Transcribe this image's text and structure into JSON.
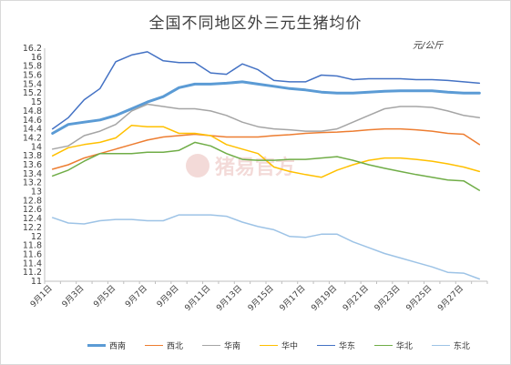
{
  "unit": "元/公斤",
  "watermark": "猪易官方",
  "chart_data": {
    "type": "line",
    "title": "全国不同地区外三元生猪均价",
    "xlabel": "",
    "ylabel": "",
    "ylim": [
      11,
      16.2
    ],
    "yticks": [
      11,
      11.2,
      11.4,
      11.6,
      11.8,
      12,
      12.2,
      12.4,
      12.6,
      12.8,
      13,
      13.2,
      13.4,
      13.6,
      13.8,
      14,
      14.2,
      14.4,
      14.6,
      14.8,
      15,
      15.2,
      15.4,
      15.6,
      15.8,
      16,
      16.2
    ],
    "x": [
      "9月1日",
      "9月2日",
      "9月3日",
      "9月4日",
      "9月5日",
      "9月6日",
      "9月7日",
      "9月8日",
      "9月9日",
      "9月10日",
      "9月11日",
      "9月12日",
      "9月13日",
      "9月14日",
      "9月15日",
      "9月16日",
      "9月17日",
      "9月18日",
      "9月19日",
      "9月20日",
      "9月21日",
      "9月22日",
      "9月23日",
      "9月24日",
      "9月25日",
      "9月26日",
      "9月27日",
      "9月28日"
    ],
    "xtick_labels": [
      "9月1日",
      "9月3日",
      "9月5日",
      "9月7日",
      "9月9日",
      "9月11日",
      "9月13日",
      "9月15日",
      "9月17日",
      "9月19日",
      "9月21日",
      "9月23日",
      "9月25日",
      "9月27日"
    ],
    "grid": false,
    "legend_position": "bottom",
    "series": [
      {
        "name": "西南",
        "color": "#5b9bd5",
        "width": 3,
        "values": [
          14.3,
          14.5,
          14.55,
          14.6,
          14.7,
          14.85,
          15.0,
          15.12,
          15.32,
          15.4,
          15.4,
          15.42,
          15.45,
          15.4,
          15.35,
          15.3,
          15.27,
          15.22,
          15.2,
          15.2,
          15.22,
          15.24,
          15.25,
          15.25,
          15.25,
          15.22,
          15.2,
          15.2
        ]
      },
      {
        "name": "西北",
        "color": "#ed7d31",
        "width": 1.5,
        "values": [
          13.5,
          13.6,
          13.75,
          13.85,
          13.95,
          14.05,
          14.15,
          14.22,
          14.25,
          14.28,
          14.25,
          14.22,
          14.22,
          14.22,
          14.25,
          14.27,
          14.3,
          14.32,
          14.33,
          14.35,
          14.38,
          14.4,
          14.4,
          14.38,
          14.35,
          14.3,
          14.28,
          14.05
        ]
      },
      {
        "name": "华南",
        "color": "#a5a5a5",
        "width": 1.5,
        "values": [
          13.95,
          14.02,
          14.25,
          14.35,
          14.5,
          14.8,
          14.95,
          14.9,
          14.85,
          14.85,
          14.8,
          14.7,
          14.55,
          14.45,
          14.4,
          14.38,
          14.35,
          14.35,
          14.4,
          14.55,
          14.7,
          14.85,
          14.9,
          14.9,
          14.88,
          14.8,
          14.7,
          14.65
        ]
      },
      {
        "name": "华中",
        "color": "#ffc000",
        "width": 1.5,
        "values": [
          13.8,
          13.98,
          14.05,
          14.1,
          14.2,
          14.48,
          14.45,
          14.45,
          14.3,
          14.3,
          14.25,
          14.05,
          13.95,
          13.85,
          13.55,
          13.45,
          13.38,
          13.32,
          13.48,
          13.6,
          13.7,
          13.75,
          13.75,
          13.72,
          13.68,
          13.62,
          13.55,
          13.45
        ]
      },
      {
        "name": "华东",
        "color": "#4472c4",
        "width": 1.5,
        "values": [
          14.4,
          14.65,
          15.05,
          15.3,
          15.9,
          16.05,
          16.12,
          15.92,
          15.88,
          15.88,
          15.65,
          15.62,
          15.85,
          15.72,
          15.48,
          15.45,
          15.45,
          15.6,
          15.58,
          15.5,
          15.52,
          15.52,
          15.52,
          15.5,
          15.5,
          15.48,
          15.45,
          15.42
        ]
      },
      {
        "name": "华北",
        "color": "#70ad47",
        "width": 1.5,
        "values": [
          13.35,
          13.48,
          13.68,
          13.85,
          13.85,
          13.85,
          13.88,
          13.88,
          13.92,
          14.1,
          14.02,
          13.85,
          13.72,
          13.7,
          13.7,
          13.72,
          13.72,
          13.75,
          13.78,
          13.7,
          13.6,
          13.52,
          13.45,
          13.38,
          13.32,
          13.26,
          13.24,
          13.03
        ]
      },
      {
        "name": "东北",
        "color": "#9dc3e6",
        "width": 1.5,
        "values": [
          12.42,
          12.3,
          12.28,
          12.35,
          12.38,
          12.38,
          12.35,
          12.35,
          12.48,
          12.48,
          12.48,
          12.45,
          12.32,
          12.22,
          12.15,
          12.0,
          11.98,
          12.05,
          12.05,
          11.88,
          11.75,
          11.62,
          11.52,
          11.42,
          11.32,
          11.2,
          11.18,
          11.05
        ]
      }
    ]
  }
}
